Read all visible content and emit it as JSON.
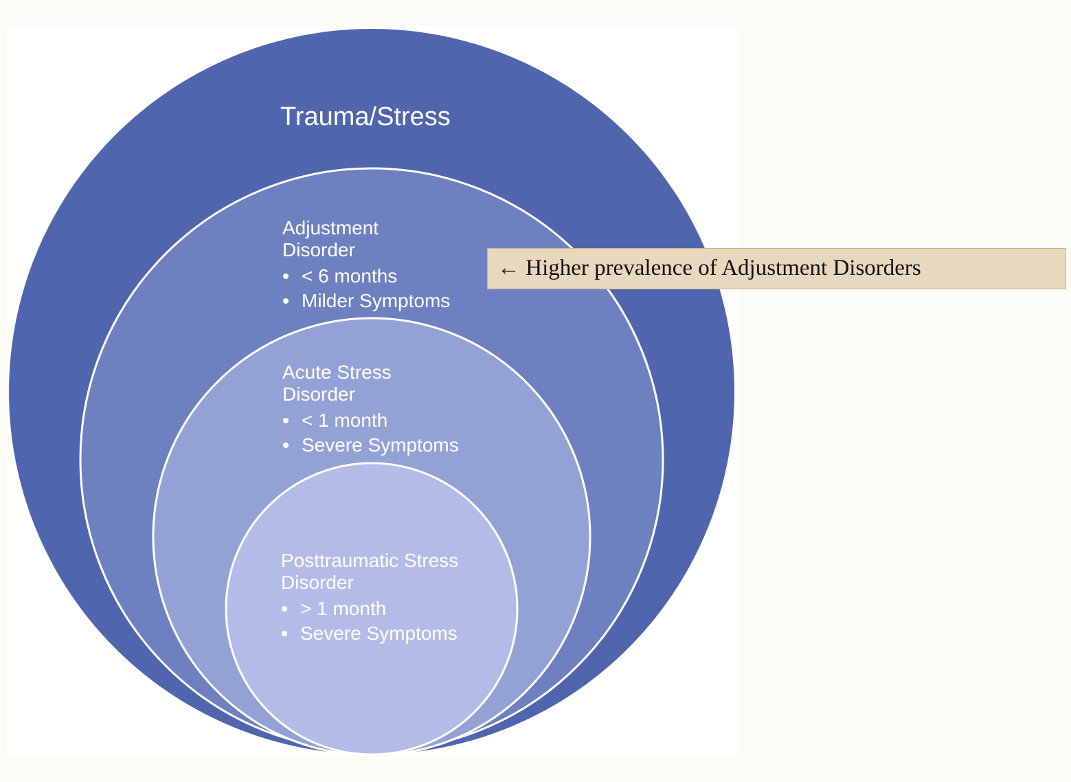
{
  "colors": {
    "page_background": "#fcfbf6",
    "panel_background": "#ffffff",
    "outer_circle": "#4f66af",
    "second_circle": "#6d81c0",
    "third_circle": "#93a2d4",
    "inner_circle": "#b2bce6",
    "ring_stroke": "#ffffff",
    "callout_fill": "#e8d8bd",
    "callout_border": "#c9b48b"
  },
  "diagram": {
    "outer": {
      "title": "Trauma/Stress"
    },
    "adjustment": {
      "name_line1": "Adjustment",
      "name_line2": "Disorder",
      "bullets": [
        "< 6 months",
        "Milder Symptoms"
      ]
    },
    "acute": {
      "name_line1": "Acute Stress",
      "name_line2": "Disorder",
      "bullets": [
        "< 1 month",
        "Severe Symptoms"
      ]
    },
    "ptsd": {
      "name_line1": "Posttraumatic Stress",
      "name_line2": "Disorder",
      "bullets": [
        "> 1 month",
        "Severe Symptoms"
      ]
    }
  },
  "callout": {
    "text": "← Higher prevalence of Adjustment Disorders"
  }
}
